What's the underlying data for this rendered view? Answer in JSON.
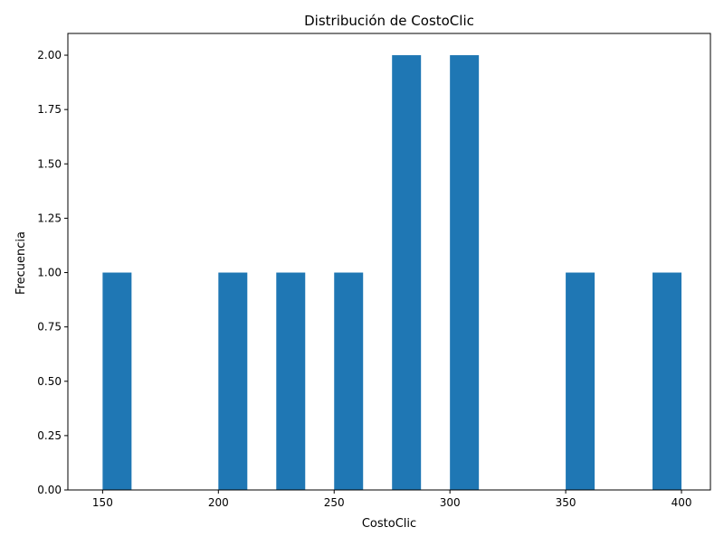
{
  "chart_data": {
    "type": "bar",
    "title": "Distribución de CostoClic",
    "xlabel": "CostoClic",
    "ylabel": "Frecuencia",
    "bar_color": "#1f77b4",
    "xlim": [
      135,
      412.5
    ],
    "ylim": [
      0,
      2.1
    ],
    "x_ticks": [
      150,
      200,
      250,
      300,
      350,
      400
    ],
    "y_ticks": [
      0,
      0.25,
      0.5,
      0.75,
      1.0,
      1.25,
      1.5,
      1.75,
      2.0
    ],
    "y_tick_format": 2,
    "bins": [
      {
        "start": 150,
        "end": 162.5,
        "count": 1
      },
      {
        "start": 200,
        "end": 212.5,
        "count": 1
      },
      {
        "start": 225,
        "end": 237.5,
        "count": 1
      },
      {
        "start": 250,
        "end": 262.5,
        "count": 1
      },
      {
        "start": 275,
        "end": 287.5,
        "count": 2
      },
      {
        "start": 300,
        "end": 312.5,
        "count": 2
      },
      {
        "start": 350,
        "end": 362.5,
        "count": 1
      },
      {
        "start": 387.5,
        "end": 400,
        "count": 1
      }
    ],
    "grid": false,
    "legend": "none"
  }
}
